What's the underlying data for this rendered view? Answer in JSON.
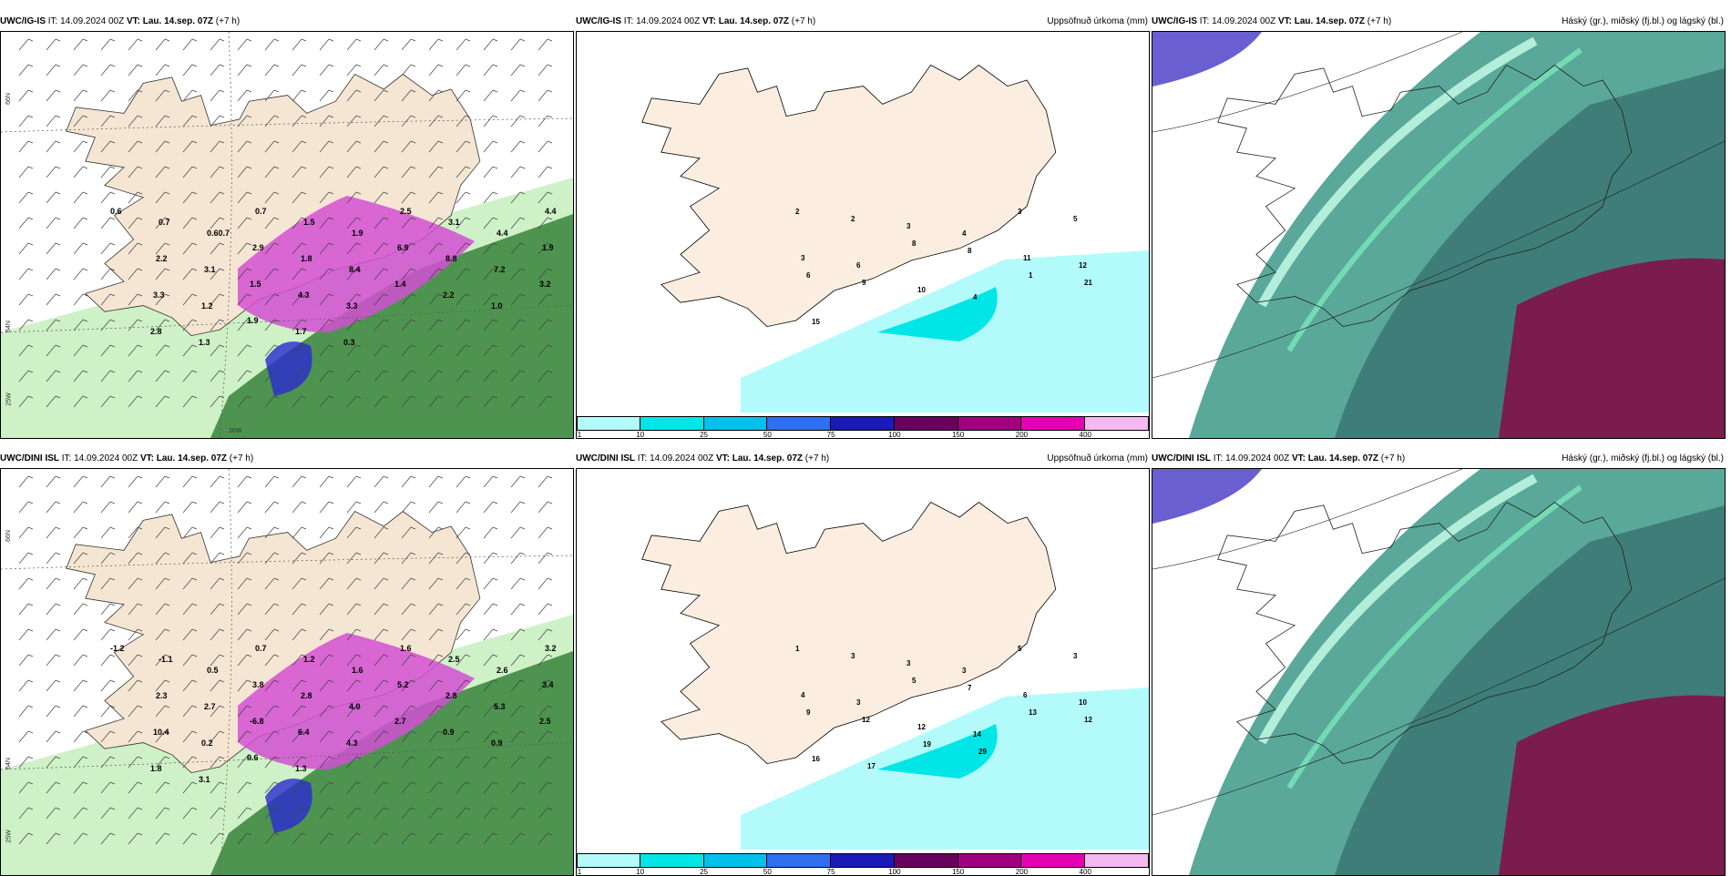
{
  "rows": [
    {
      "model": "UWC/IG-IS",
      "it_text": "IT: 14.09.2024 00Z",
      "vt_label": "VT:",
      "vt_value": "Lau. 14.sep. 07Z",
      "lead": "(+7 h)",
      "lat_labels": {
        "n66": "66N",
        "n64": "64N",
        "w25": "25W",
        "w20": "20W"
      },
      "panel1_values": [
        "0.6",
        "0.7",
        "0.60.7",
        "0.7",
        "1.5",
        "1.9",
        "2.5",
        "3.1",
        "4.4",
        "4.4",
        "2.2",
        "3.1",
        "2.9",
        "1.8",
        "8.4",
        "6.9",
        "8.8",
        "7.2",
        "1.9",
        "3.3",
        "1.2",
        "1.5",
        "4.3",
        "3.3",
        "1.4",
        "2.2",
        "1.0",
        "3.2",
        "2.8",
        "1.3",
        "1.9",
        "1.7",
        "0.3"
      ],
      "panel2_values": [
        "2",
        "2",
        "3",
        "4",
        "3",
        "5",
        "3",
        "6",
        "8",
        "8",
        "11",
        "12",
        "6",
        "9",
        "10",
        "4",
        "1",
        "21",
        "15"
      ]
    },
    {
      "model": "UWC/DINI ISL",
      "it_text": "IT: 14.09.2024 00Z",
      "vt_label": "VT:",
      "vt_value": "Lau. 14.sep. 07Z",
      "lead": "(+7 h)",
      "lat_labels": {
        "n66": "66N",
        "n64": "64N",
        "w25": "25W",
        "w20": "20W"
      },
      "panel1_values": [
        "-1.2",
        "-1.1",
        "0.5",
        "0.7",
        "1.2",
        "1.6",
        "1.6",
        "2.5",
        "2.6",
        "3.2",
        "2.3",
        "2.7",
        "3.8",
        "2.8",
        "4.0",
        "5.2",
        "2.8",
        "5.3",
        "3.4",
        "10.4",
        "0.2",
        "-6.8",
        "6.4",
        "4.3",
        "2.7",
        "0.9",
        "0.9",
        "2.5",
        "1.8",
        "3.1",
        "0.6",
        "1.3"
      ],
      "panel2_values": [
        "1",
        "3",
        "3",
        "3",
        "5",
        "3",
        "4",
        "3",
        "5",
        "7",
        "6",
        "10",
        "9",
        "12",
        "12",
        "14",
        "13",
        "12",
        "16",
        "17",
        "19",
        "29"
      ]
    }
  ],
  "precip_title": "Uppsöfnuð úrkoma (mm)",
  "cloud_title": "Háský (gr.), miðský (fj.bl.) og lágský (bl.)",
  "colorbar": {
    "labels": [
      "1",
      "10",
      "25",
      "50",
      "75",
      "100",
      "150",
      "200",
      "400"
    ],
    "colors": [
      "#b3fbfb",
      "#00e6e6",
      "#00c2e8",
      "#2f6ff0",
      "#1a1ab8",
      "#680060",
      "#a00080",
      "#e600b4",
      "#f6b8f0"
    ]
  }
}
